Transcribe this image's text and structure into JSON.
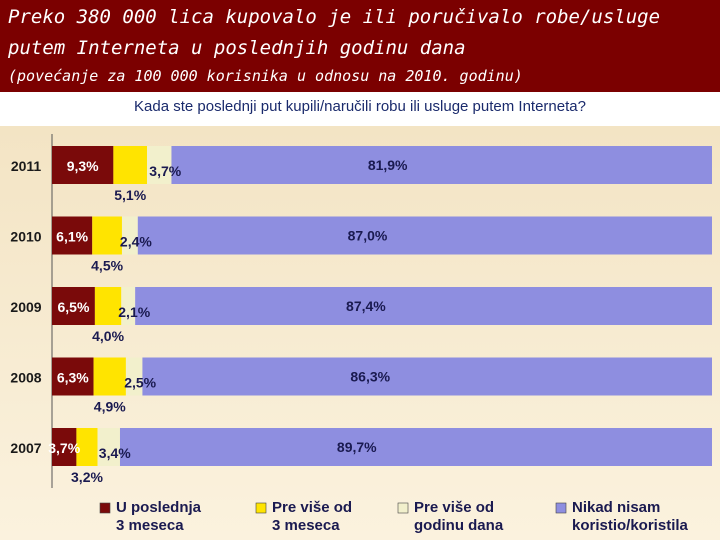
{
  "header": {
    "title_line1": "Preko 380 000 lica kupovalo je ili poručivalo robe/usluge",
    "title_line2": "putem Interneta u poslednjih godinu dana",
    "subtitle": "(povećanje za 100 000 korisnika u odnosu na 2010. godinu)"
  },
  "chart_data": {
    "type": "bar",
    "orientation": "horizontal",
    "stacked": true,
    "title": "Kada ste poslednji put kupili/naručili robu ili usluge  putem Interneta?",
    "categories": [
      "2011",
      "2010",
      "2009",
      "2008",
      "2007"
    ],
    "xlim": [
      0,
      100
    ],
    "grid": false,
    "legend_position": "bottom",
    "series": [
      {
        "name": "U poslednja 3 meseca",
        "legend_lines": [
          "U poslednja",
          "3 meseca"
        ],
        "color": "#7a0a0a",
        "values": [
          9.3,
          6.1,
          6.5,
          6.3,
          3.7
        ],
        "labels": [
          "9,3%",
          "6,1%",
          "6,5%",
          "6,3%",
          "3,7%"
        ]
      },
      {
        "name": "Pre više od 3 meseca",
        "legend_lines": [
          "Pre više od",
          "3 meseca"
        ],
        "color": "#ffe400",
        "values": [
          5.1,
          4.5,
          4.0,
          4.9,
          3.2
        ],
        "labels": [
          "5,1%",
          "4,5%",
          "4,0%",
          "4,9%",
          "3,2%"
        ]
      },
      {
        "name": "Pre više od godinu dana",
        "legend_lines": [
          "Pre više od",
          "godinu dana"
        ],
        "color": "#f2f0cc",
        "values": [
          3.7,
          2.4,
          2.1,
          2.5,
          3.4
        ],
        "labels": [
          "3,7%",
          "2,4%",
          "2,1%",
          "2,5%",
          "3,4%"
        ]
      },
      {
        "name": "Nikad nisam koristio/koristila",
        "legend_lines": [
          "Nikad nisam",
          "koristio/koristila"
        ],
        "color": "#8e8ee0",
        "values": [
          81.9,
          87.0,
          87.4,
          86.3,
          89.7
        ],
        "labels": [
          "81,9%",
          "87,0%",
          "87,4%",
          "86,3%",
          "89,7%"
        ]
      }
    ]
  }
}
